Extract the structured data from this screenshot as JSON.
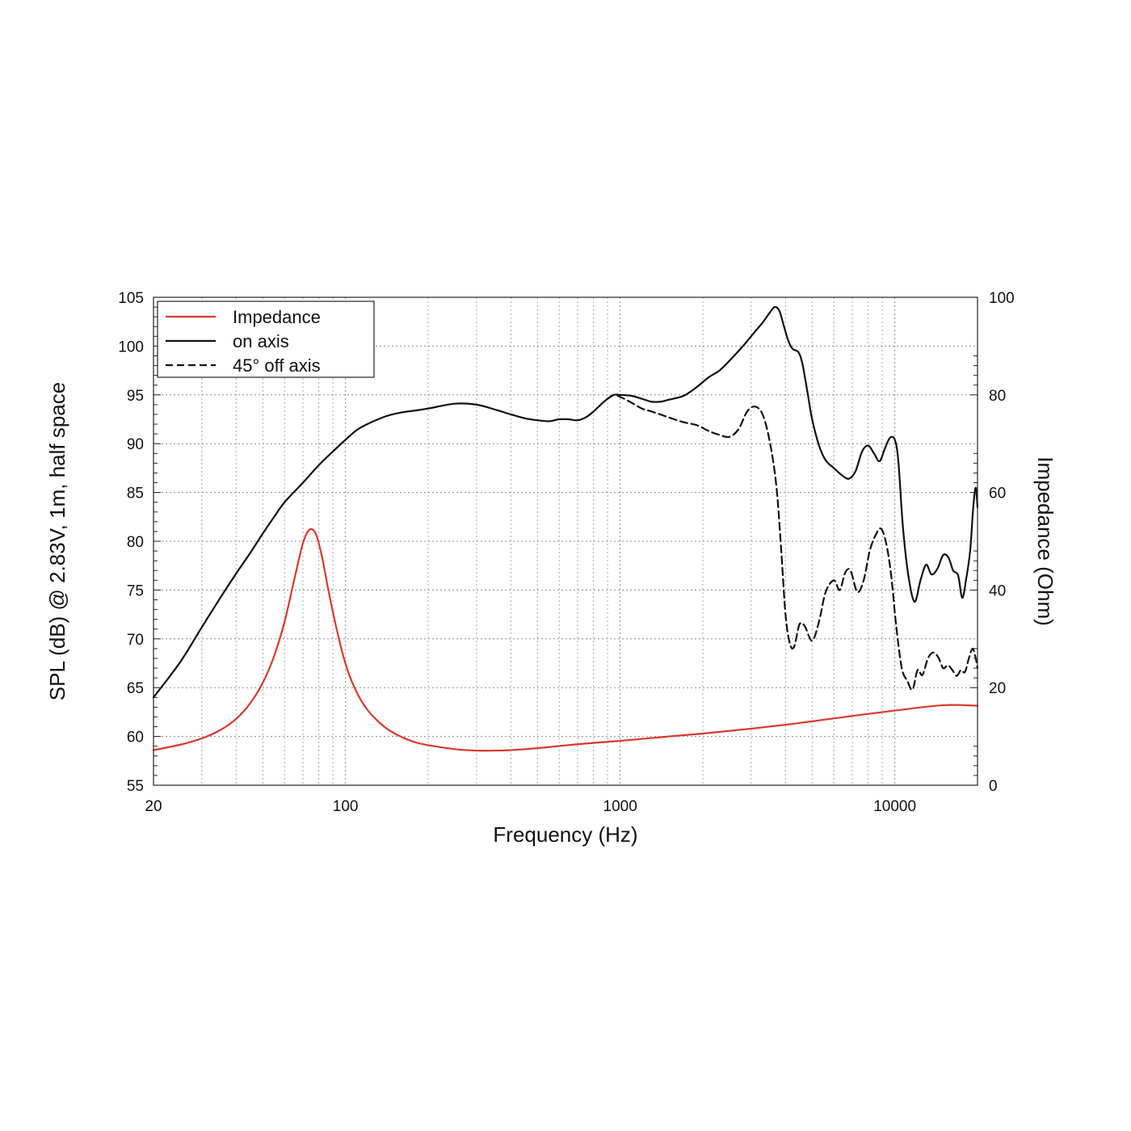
{
  "chart_data": {
    "type": "line",
    "title": "",
    "xlabel": "Frequency (Hz)",
    "ylabel": "SPL (dB) @ 2.83V, 1m, half space",
    "y2label": "Impedance (Ohm)",
    "xscale": "log",
    "xlim": [
      20,
      20000
    ],
    "ylim": [
      55,
      105
    ],
    "y2lim": [
      0,
      100
    ],
    "x_ticks": [
      20,
      100,
      1000,
      10000
    ],
    "x_tick_labels": [
      "20",
      "100",
      "1000",
      "10000"
    ],
    "y_ticks": [
      55,
      60,
      65,
      70,
      75,
      80,
      85,
      90,
      95,
      100,
      105
    ],
    "y_tick_labels": [
      "55",
      "60",
      "65",
      "70",
      "75",
      "80",
      "85",
      "90",
      "95",
      "100",
      "105"
    ],
    "y2_ticks": [
      0,
      20,
      40,
      60,
      80,
      100
    ],
    "y2_tick_labels": [
      "0",
      "20",
      "40",
      "60",
      "80",
      "100"
    ],
    "grid": true,
    "legend_position": "top-left",
    "series": [
      {
        "name": "Impedance",
        "axis": "right",
        "color": "#d9392b",
        "style": "solid",
        "points": [
          [
            20,
            7.2
          ],
          [
            25,
            8.3
          ],
          [
            30,
            9.6
          ],
          [
            35,
            11.3
          ],
          [
            40,
            13.6
          ],
          [
            45,
            16.8
          ],
          [
            50,
            21
          ],
          [
            55,
            26.5
          ],
          [
            60,
            33.5
          ],
          [
            65,
            42
          ],
          [
            70,
            49.6
          ],
          [
            74,
            52.4
          ],
          [
            78,
            51.5
          ],
          [
            82,
            47
          ],
          [
            87,
            39.5
          ],
          [
            92,
            33
          ],
          [
            97,
            27.6
          ],
          [
            102,
            23.4
          ],
          [
            110,
            19
          ],
          [
            120,
            15.5
          ],
          [
            135,
            12.5
          ],
          [
            150,
            10.7
          ],
          [
            175,
            9
          ],
          [
            200,
            8.2
          ],
          [
            250,
            7.4
          ],
          [
            300,
            7.1
          ],
          [
            350,
            7.1
          ],
          [
            400,
            7.2
          ],
          [
            500,
            7.6
          ],
          [
            700,
            8.4
          ],
          [
            1000,
            9.1
          ],
          [
            1500,
            10
          ],
          [
            2000,
            10.6
          ],
          [
            3000,
            11.6
          ],
          [
            4000,
            12.4
          ],
          [
            5000,
            13.1
          ],
          [
            7000,
            14.2
          ],
          [
            10000,
            15.3
          ],
          [
            15000,
            16.4
          ],
          [
            20000,
            16.3
          ]
        ]
      },
      {
        "name": "on axis",
        "axis": "left",
        "color": "#111111",
        "style": "solid",
        "points": [
          [
            20,
            64
          ],
          [
            25,
            67.6
          ],
          [
            30,
            71.2
          ],
          [
            35,
            74.2
          ],
          [
            40,
            76.7
          ],
          [
            45,
            78.8
          ],
          [
            50,
            80.8
          ],
          [
            55,
            82.5
          ],
          [
            60,
            84
          ],
          [
            70,
            86
          ],
          [
            80,
            87.8
          ],
          [
            90,
            89.2
          ],
          [
            100,
            90.4
          ],
          [
            110,
            91.4
          ],
          [
            120,
            92
          ],
          [
            140,
            92.8
          ],
          [
            160,
            93.2
          ],
          [
            180,
            93.4
          ],
          [
            200,
            93.6
          ],
          [
            250,
            94.1
          ],
          [
            300,
            94
          ],
          [
            350,
            93.5
          ],
          [
            400,
            93
          ],
          [
            450,
            92.6
          ],
          [
            500,
            92.4
          ],
          [
            550,
            92.3
          ],
          [
            600,
            92.5
          ],
          [
            650,
            92.5
          ],
          [
            700,
            92.4
          ],
          [
            750,
            92.7
          ],
          [
            800,
            93.3
          ],
          [
            850,
            94
          ],
          [
            900,
            94.6
          ],
          [
            950,
            95
          ],
          [
            1000,
            95
          ],
          [
            1100,
            94.9
          ],
          [
            1200,
            94.6
          ],
          [
            1300,
            94.3
          ],
          [
            1400,
            94.3
          ],
          [
            1500,
            94.5
          ],
          [
            1700,
            94.9
          ],
          [
            1900,
            95.8
          ],
          [
            2100,
            96.8
          ],
          [
            2300,
            97.5
          ],
          [
            2500,
            98.5
          ],
          [
            2800,
            100
          ],
          [
            3100,
            101.5
          ],
          [
            3300,
            102.4
          ],
          [
            3500,
            103.4
          ],
          [
            3650,
            104
          ],
          [
            3800,
            103.6
          ],
          [
            3950,
            102
          ],
          [
            4100,
            100.5
          ],
          [
            4250,
            99.7
          ],
          [
            4450,
            99.4
          ],
          [
            4600,
            98.3
          ],
          [
            4800,
            95.4
          ],
          [
            5000,
            92.5
          ],
          [
            5300,
            89.8
          ],
          [
            5600,
            88.3
          ],
          [
            6000,
            87.5
          ],
          [
            6400,
            86.8
          ],
          [
            6800,
            86.4
          ],
          [
            7200,
            87.2
          ],
          [
            7600,
            89.2
          ],
          [
            8000,
            89.8
          ],
          [
            8400,
            89
          ],
          [
            8800,
            88.2
          ],
          [
            9200,
            89.5
          ],
          [
            9600,
            90.6
          ],
          [
            10000,
            90.4
          ],
          [
            10300,
            88.2
          ],
          [
            10700,
            81.5
          ],
          [
            11200,
            76.5
          ],
          [
            11800,
            73.8
          ],
          [
            12400,
            76
          ],
          [
            13000,
            77.6
          ],
          [
            13600,
            76.6
          ],
          [
            14300,
            77.2
          ],
          [
            15000,
            78.6
          ],
          [
            15700,
            78.3
          ],
          [
            16300,
            77
          ],
          [
            17000,
            76.5
          ],
          [
            17600,
            74.2
          ],
          [
            18200,
            76.2
          ],
          [
            18800,
            79
          ],
          [
            19300,
            83.5
          ],
          [
            19700,
            85.5
          ],
          [
            20000,
            83.5
          ]
        ]
      },
      {
        "name": "45° off axis",
        "axis": "left",
        "color": "#111111",
        "style": "dashed",
        "points": [
          [
            900,
            94.6
          ],
          [
            950,
            95
          ],
          [
            1000,
            94.8
          ],
          [
            1100,
            94.2
          ],
          [
            1200,
            93.6
          ],
          [
            1300,
            93.3
          ],
          [
            1400,
            93
          ],
          [
            1500,
            92.7
          ],
          [
            1700,
            92.2
          ],
          [
            1900,
            91.9
          ],
          [
            2100,
            91.3
          ],
          [
            2300,
            90.9
          ],
          [
            2500,
            90.7
          ],
          [
            2700,
            91.5
          ],
          [
            2900,
            93.3
          ],
          [
            3100,
            93.8
          ],
          [
            3300,
            93
          ],
          [
            3500,
            90.3
          ],
          [
            3700,
            85.8
          ],
          [
            3850,
            79.5
          ],
          [
            4000,
            72.5
          ],
          [
            4150,
            69.5
          ],
          [
            4300,
            69.2
          ],
          [
            4500,
            71.5
          ],
          [
            4700,
            71.3
          ],
          [
            5000,
            69.8
          ],
          [
            5300,
            71.8
          ],
          [
            5600,
            74.8
          ],
          [
            6000,
            76
          ],
          [
            6300,
            75
          ],
          [
            6600,
            76.8
          ],
          [
            6900,
            77
          ],
          [
            7300,
            74.8
          ],
          [
            7700,
            76
          ],
          [
            8100,
            79
          ],
          [
            8500,
            80.6
          ],
          [
            8900,
            81.3
          ],
          [
            9300,
            79.8
          ],
          [
            9700,
            76.5
          ],
          [
            10100,
            71.5
          ],
          [
            10600,
            67
          ],
          [
            11100,
            65.7
          ],
          [
            11600,
            64.8
          ],
          [
            12100,
            66.8
          ],
          [
            12600,
            66.3
          ],
          [
            13200,
            68
          ],
          [
            13800,
            68.6
          ],
          [
            14400,
            68.1
          ],
          [
            15000,
            67
          ],
          [
            15600,
            67.3
          ],
          [
            16200,
            66.8
          ],
          [
            16800,
            66.2
          ],
          [
            17400,
            66.8
          ],
          [
            18000,
            66.6
          ],
          [
            18600,
            68
          ],
          [
            19200,
            69
          ],
          [
            19700,
            68
          ],
          [
            20000,
            67
          ]
        ]
      }
    ]
  }
}
